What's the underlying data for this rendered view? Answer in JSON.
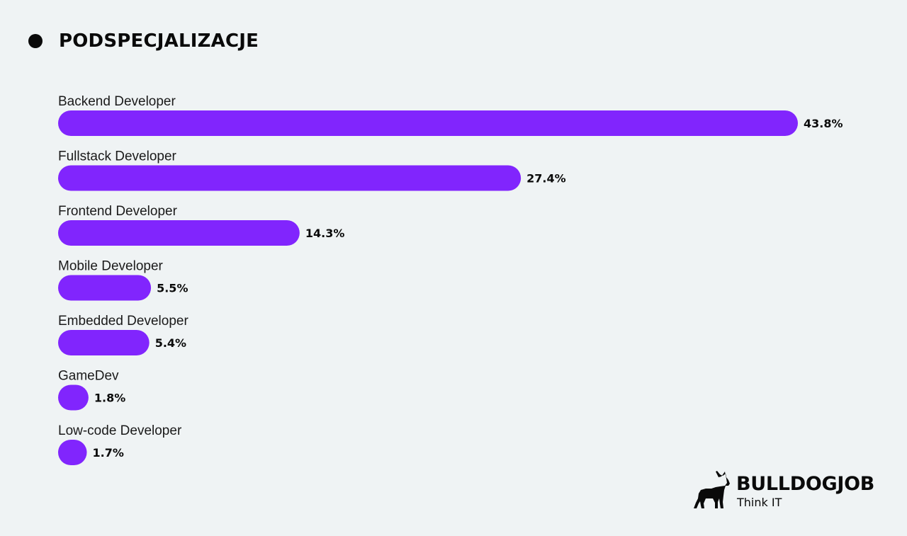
{
  "title": "PODSPECJALIZACJE",
  "colors": {
    "background": "#eff3f4",
    "bar": "#8125fd",
    "text": "#0a0a0a"
  },
  "chart_data": {
    "type": "bar",
    "orientation": "horizontal",
    "categories": [
      "Backend Developer",
      "Fullstack Developer",
      "Frontend Developer",
      "Mobile Developer",
      "Embedded Developer",
      "GameDev",
      "Low-code Developer"
    ],
    "values": [
      43.8,
      27.4,
      14.3,
      5.5,
      5.4,
      1.8,
      1.7
    ],
    "value_labels": [
      "43.8%",
      "27.4%",
      "14.3%",
      "5.5%",
      "5.4%",
      "1.8%",
      "1.7%"
    ],
    "unit": "%",
    "title": "PODSPECJALIZACJE",
    "xlim": [
      0,
      43.8
    ],
    "grid": false
  },
  "logo": {
    "brand": "BULLDOGJOB",
    "tagline": "Think IT",
    "icon": "bulldog-icon"
  }
}
